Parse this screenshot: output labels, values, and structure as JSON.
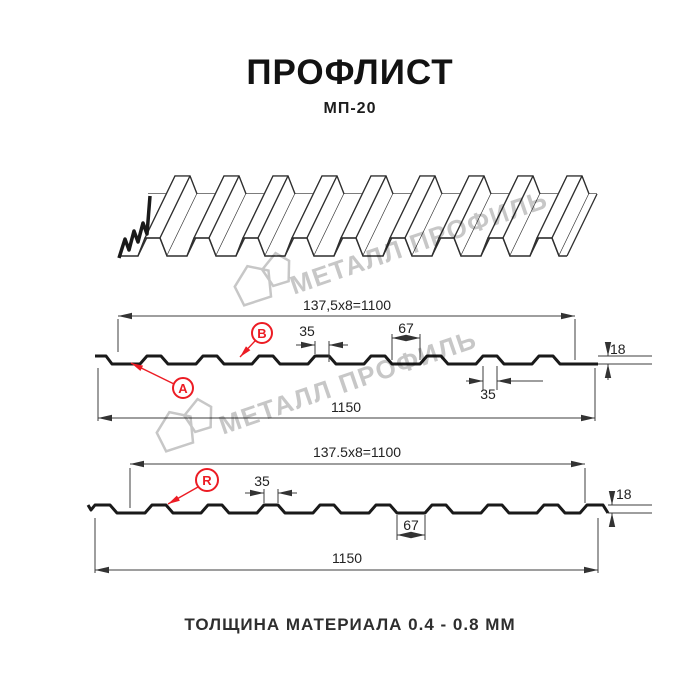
{
  "header": {
    "title": "ПРОФЛИСТ",
    "subtitle": "МП-20"
  },
  "watermark": {
    "text": "МЕТАЛЛ ПРОФИЛЬ"
  },
  "footer": {
    "text": "ТОЛЩИНА МАТЕРИАЛА 0.4 - 0.8 ММ"
  },
  "colors": {
    "accent_red": "#ec1c24",
    "line_black": "#1a1a1a",
    "dim_gray": "#3c3c3c",
    "watermark_gray": "#c7c7c7"
  },
  "section_a": {
    "pitch_dim": "137,5x8=1100",
    "label_a": "A",
    "label_b": "B",
    "rib_top_width": "35",
    "valley_width": "67",
    "height": "18",
    "rib_bottom_width": "35",
    "total_width": "1150"
  },
  "section_r": {
    "pitch_dim": "137.5x8=1100",
    "label_r": "R",
    "rib_top_width": "35",
    "valley_width": "67",
    "height": "18",
    "total_width": "1150"
  }
}
